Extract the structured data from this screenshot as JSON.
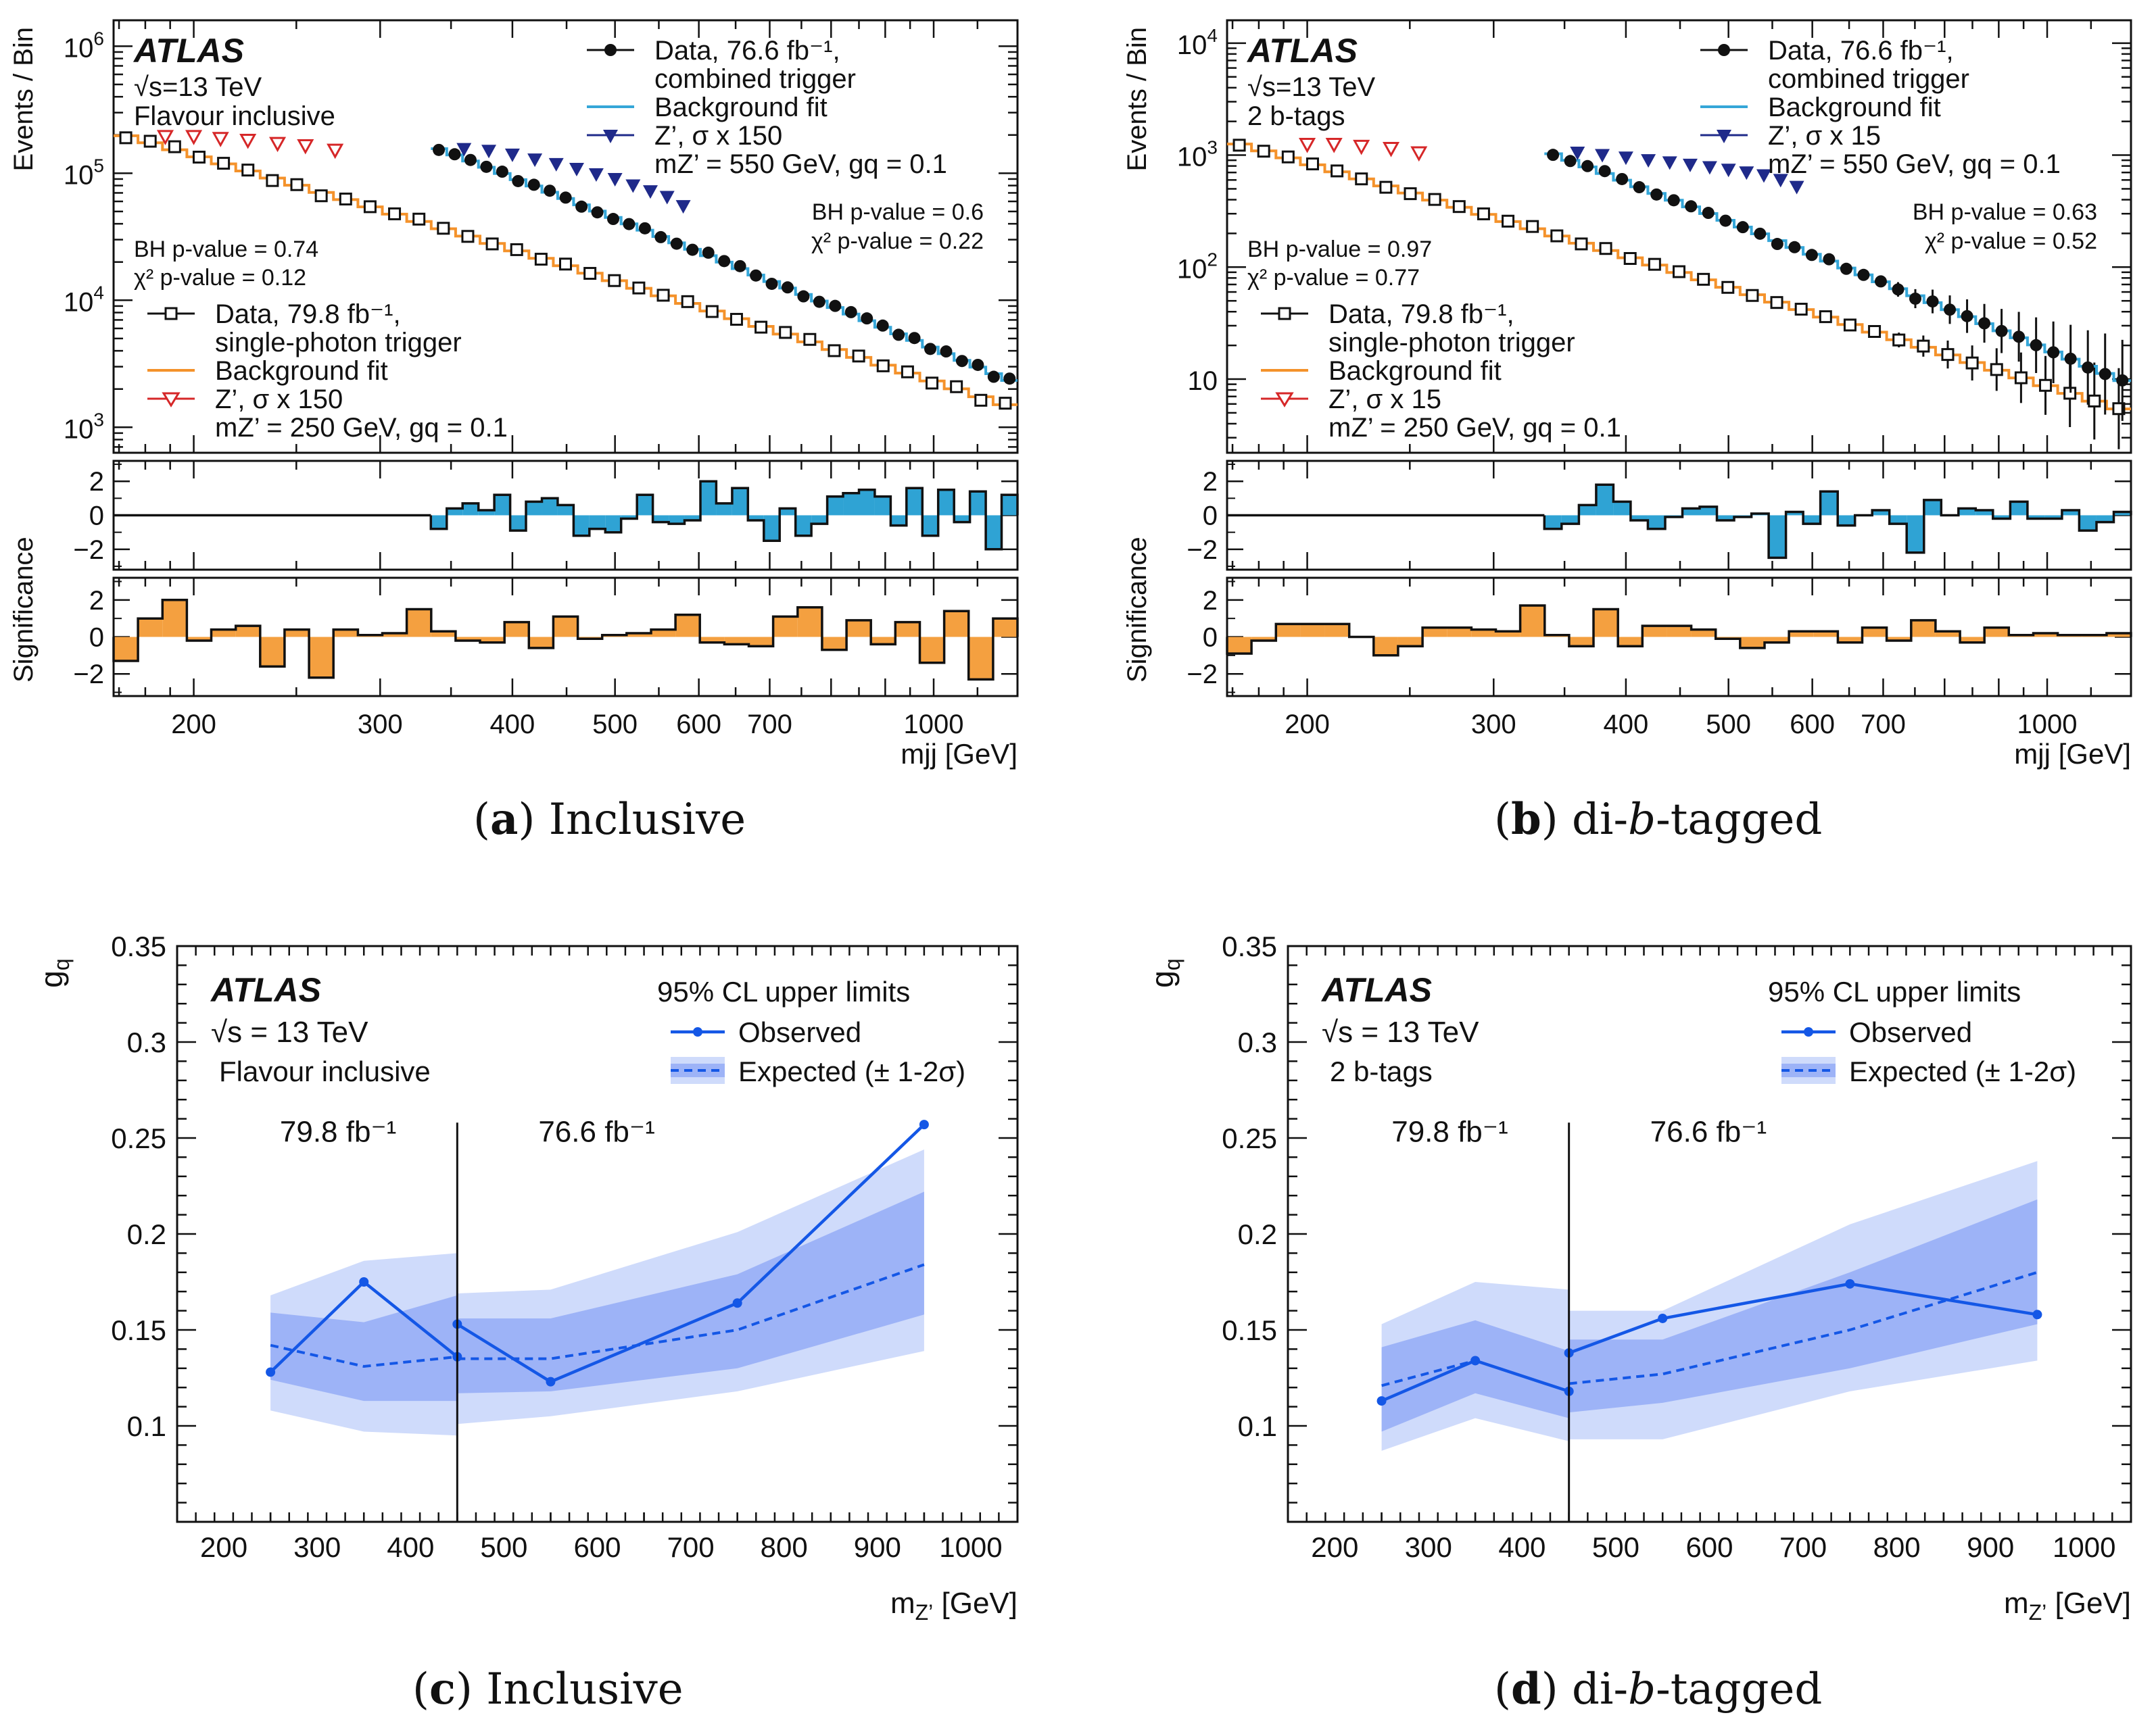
{
  "colors": {
    "orange_fit": "#f4922b",
    "orange_fill": "#f4a040",
    "blue_fit": "#35a6d8",
    "blue_fill": "#2fa3d4",
    "signal_red": "#d62728",
    "signal_navy": "#1f2a8a",
    "limit_blue": "#1457e6",
    "band_1sigma": "#9db3f7",
    "band_2sigma": "#cfdbfb"
  },
  "captions": {
    "a": {
      "label": "a",
      "text": "Inclusive"
    },
    "b": {
      "label": "b",
      "text_pre": "di-",
      "text_italic": "b",
      "text_post": "-tagged"
    },
    "c": {
      "label": "c",
      "text": "Inclusive"
    },
    "d": {
      "label": "d",
      "text_pre": "di-",
      "text_italic": "b",
      "text_post": "-tagged"
    }
  },
  "chart_data": [
    {
      "id": "a",
      "type": "line",
      "title": "Inclusive",
      "atlas_label": "ATLAS",
      "energy_label": "√s=13 TeV",
      "category_label": "Flavour inclusive",
      "xlabel": "m_jj [GeV]",
      "ylabel": "Events / Bin",
      "ylabel_significance": "Significance",
      "xscale": "log",
      "yscale": "log",
      "xlim": [
        168,
        1200
      ],
      "ylim": [
        630,
        1600000
      ],
      "x_ticks": [
        200,
        300,
        400,
        500,
        600,
        700,
        1000
      ],
      "y_tick_labels": [
        {
          "v": 1000,
          "mant": "10",
          "exp": "3"
        },
        {
          "v": 10000,
          "mant": "10",
          "exp": "4"
        },
        {
          "v": 100000,
          "mant": "10",
          "exp": "5"
        },
        {
          "v": 1000000,
          "mant": "10",
          "exp": "6"
        }
      ],
      "pvalues": {
        "single_photon": {
          "bh": "BH p-value = 0.74",
          "chi2": "χ² p-value = 0.12"
        },
        "combined": {
          "bh": "BH p-value = 0.6",
          "chi2": "χ² p-value = 0.22"
        }
      },
      "legend_combined": [
        "Data, 76.6 fb⁻¹,",
        "combined trigger",
        "Background fit",
        "Z’, σ x 150",
        "mZ’ = 550 GeV, gq = 0.1"
      ],
      "legend_single": [
        "Data, 79.8 fb⁻¹,",
        "single-photon trigger",
        "Background fit",
        "Z’, σ x 150",
        "mZ’ = 250 GeV, gq = 0.1"
      ],
      "single_photon": {
        "x_range": [
          168,
          1200
        ],
        "y_start": 210000,
        "y_end": 1400,
        "curve": 0.15,
        "signal_points": [
          [
            188,
            195000
          ],
          [
            200,
            195000
          ],
          [
            212,
            188000
          ],
          [
            225,
            182000
          ],
          [
            240,
            172000
          ],
          [
            255,
            165000
          ],
          [
            272,
            152000
          ]
        ],
        "significance": [
          -1.3,
          1.0,
          2.0,
          -0.2,
          0.4,
          0.6,
          -1.6,
          0.4,
          -2.2,
          0.4,
          0.1,
          0.2,
          1.5,
          0.3,
          -0.2,
          -0.3,
          0.8,
          -0.6,
          1.1,
          -0.1,
          0.1,
          0.2,
          0.4,
          1.2,
          -0.3,
          -0.4,
          -0.5,
          1.1,
          1.6,
          -0.7,
          0.9,
          -0.4,
          0.8,
          -1.4,
          1.4,
          -2.3,
          1.0
        ]
      },
      "combined": {
        "x_range": [
          335,
          1200
        ],
        "y_start": 165000,
        "y_end": 2200,
        "curve": 0.08,
        "signal_points": [
          [
            360,
            155000
          ],
          [
            380,
            150000
          ],
          [
            400,
            140000
          ],
          [
            420,
            128000
          ],
          [
            440,
            118000
          ],
          [
            460,
            108000
          ],
          [
            480,
            98000
          ],
          [
            500,
            90000
          ],
          [
            520,
            80000
          ],
          [
            540,
            72000
          ],
          [
            560,
            65000
          ],
          [
            580,
            55000
          ]
        ],
        "significance": [
          -0.8,
          0.4,
          0.7,
          0.3,
          1.2,
          -0.9,
          0.8,
          1.0,
          0.6,
          -1.2,
          -0.8,
          -1.0,
          -0.2,
          1.2,
          -0.4,
          -0.5,
          -0.3,
          2.0,
          0.7,
          1.6,
          -0.3,
          -1.5,
          0.4,
          -1.2,
          -0.5,
          1.1,
          1.3,
          1.5,
          1.1,
          -0.6,
          1.6,
          -1.2,
          1.5,
          -0.4,
          1.4,
          -2.0,
          1.2
        ]
      }
    },
    {
      "id": "b",
      "type": "line",
      "title": "di-b-tagged",
      "atlas_label": "ATLAS",
      "energy_label": "√s=13 TeV",
      "category_label": "2 b-tags",
      "xlabel": "m_jj [GeV]",
      "ylabel": "Events / Bin",
      "ylabel_significance": "Significance",
      "xscale": "log",
      "yscale": "log",
      "xlim": [
        168,
        1200
      ],
      "ylim": [
        2.2,
        16000
      ],
      "x_ticks": [
        200,
        300,
        400,
        500,
        600,
        700,
        1000
      ],
      "y_tick_labels": [
        {
          "v": 10,
          "mant": "10",
          "exp": ""
        },
        {
          "v": 100,
          "mant": "10",
          "exp": "2"
        },
        {
          "v": 1000,
          "mant": "10",
          "exp": "3"
        },
        {
          "v": 10000,
          "mant": "10",
          "exp": "4"
        }
      ],
      "pvalues": {
        "single_photon": {
          "bh": "BH p-value = 0.97",
          "chi2": "χ² p-value = 0.77"
        },
        "combined": {
          "bh": "BH p-value = 0.63",
          "chi2": "χ² p-value = 0.52"
        }
      },
      "legend_combined": [
        "Data, 76.6 fb⁻¹,",
        "combined trigger",
        "Background fit",
        "Z’, σ x 15",
        "mZ’ = 550 GeV, gq = 0.1"
      ],
      "legend_single": [
        "Data, 79.8 fb⁻¹,",
        "single-photon trigger",
        "Background fit",
        "Z’, σ x 15",
        "mZ’ = 250 GeV, gq = 0.1"
      ],
      "single_photon": {
        "x_range": [
          168,
          1200
        ],
        "y_start": 1350,
        "y_end": 5,
        "curve": 0.15,
        "signal_points": [
          [
            200,
            1250
          ],
          [
            212,
            1250
          ],
          [
            225,
            1200
          ],
          [
            240,
            1150
          ],
          [
            255,
            1050
          ]
        ],
        "significance": [
          -0.9,
          -0.2,
          0.7,
          0.7,
          0.7,
          0.0,
          -1.0,
          -0.5,
          0.5,
          0.5,
          0.4,
          0.3,
          1.7,
          0.1,
          -0.5,
          1.5,
          -0.5,
          0.6,
          0.6,
          0.4,
          -0.1,
          -0.6,
          -0.3,
          0.3,
          0.3,
          -0.3,
          0.5,
          -0.2,
          0.9,
          0.3,
          -0.3,
          0.5,
          0.1,
          0.2,
          0.1,
          0.1,
          0.2
        ]
      },
      "combined": {
        "x_range": [
          335,
          1200
        ],
        "y_start": 1100,
        "y_end": 9,
        "curve": 0.1,
        "signal_points": [
          [
            360,
            1050
          ],
          [
            380,
            1000
          ],
          [
            400,
            950
          ],
          [
            420,
            900
          ],
          [
            440,
            860
          ],
          [
            460,
            820
          ],
          [
            480,
            780
          ],
          [
            500,
            740
          ],
          [
            520,
            700
          ],
          [
            540,
            660
          ],
          [
            560,
            600
          ],
          [
            580,
            520
          ]
        ],
        "significance": [
          -0.8,
          -0.5,
          0.6,
          1.8,
          0.8,
          -0.3,
          -0.8,
          -0.1,
          0.4,
          0.5,
          -0.3,
          -0.1,
          0.1,
          -2.5,
          0.2,
          -0.5,
          1.4,
          -0.6,
          0.0,
          0.3,
          -0.5,
          -2.2,
          0.9,
          0.0,
          0.4,
          0.3,
          -0.2,
          0.8,
          -0.2,
          -0.2,
          0.3,
          -0.9,
          -0.4,
          0.2
        ]
      }
    },
    {
      "id": "c",
      "type": "line",
      "title": "Inclusive",
      "atlas_label": "ATLAS",
      "energy_label": "√s = 13 TeV",
      "category_label": "Flavour inclusive",
      "xlabel": "m_Z’ [GeV]",
      "ylabel": "g_q",
      "xlim": [
        150,
        1050
      ],
      "ylim": [
        0.05,
        0.35
      ],
      "x_ticks": [
        200,
        300,
        400,
        500,
        600,
        700,
        800,
        900,
        1000
      ],
      "y_ticks": [
        "0.1",
        "0.15",
        "0.2",
        "0.25",
        "0.3",
        "0.35"
      ],
      "legend_title": "95% CL upper limits",
      "legend_observed": "Observed",
      "legend_expected": "Expected (± 1-2σ)",
      "lumi_left": "79.8 fb⁻¹",
      "lumi_right": "76.6 fb⁻¹",
      "divider_x": 450,
      "segments": [
        {
          "x": [
            250,
            350,
            450
          ],
          "observed": [
            0.128,
            0.175,
            0.136
          ],
          "expected": [
            0.142,
            0.131,
            0.136
          ],
          "band1_lo": [
            0.124,
            0.113,
            0.113
          ],
          "band1_hi": [
            0.159,
            0.154,
            0.168
          ],
          "band2_lo": [
            0.108,
            0.097,
            0.095
          ],
          "band2_hi": [
            0.168,
            0.186,
            0.19
          ]
        },
        {
          "x": [
            450,
            550,
            750,
            950
          ],
          "observed": [
            0.153,
            0.123,
            0.164,
            0.257
          ],
          "expected": [
            0.135,
            0.135,
            0.15,
            0.184
          ],
          "band1_lo": [
            0.117,
            0.118,
            0.13,
            0.158
          ],
          "band1_hi": [
            0.156,
            0.156,
            0.179,
            0.222
          ],
          "band2_lo": [
            0.101,
            0.105,
            0.118,
            0.139
          ],
          "band2_hi": [
            0.169,
            0.171,
            0.201,
            0.244
          ]
        }
      ]
    },
    {
      "id": "d",
      "type": "line",
      "title": "di-b-tagged",
      "atlas_label": "ATLAS",
      "energy_label": "√s = 13 TeV",
      "category_label": "2 b-tags",
      "xlabel": "m_Z’ [GeV]",
      "ylabel": "g_q",
      "xlim": [
        150,
        1050
      ],
      "ylim": [
        0.05,
        0.35
      ],
      "x_ticks": [
        200,
        300,
        400,
        500,
        600,
        700,
        800,
        900,
        1000
      ],
      "y_ticks": [
        "0.1",
        "0.15",
        "0.2",
        "0.25",
        "0.3",
        "0.35"
      ],
      "legend_title": "95% CL upper limits",
      "legend_observed": "Observed",
      "legend_expected": "Expected (± 1-2σ)",
      "lumi_left": "79.8 fb⁻¹",
      "lumi_right": "76.6 fb⁻¹",
      "divider_x": 450,
      "segments": [
        {
          "x": [
            250,
            350,
            450
          ],
          "observed": [
            0.113,
            0.134,
            0.118
          ],
          "expected": [
            0.121,
            0.134,
            0.118
          ],
          "band1_lo": [
            0.097,
            0.117,
            0.104
          ],
          "band1_hi": [
            0.141,
            0.155,
            0.139
          ],
          "band2_lo": [
            0.087,
            0.104,
            0.092
          ],
          "band2_hi": [
            0.153,
            0.175,
            0.171
          ]
        },
        {
          "x": [
            450,
            550,
            750,
            950
          ],
          "observed": [
            0.138,
            0.156,
            0.174,
            0.158
          ],
          "expected": [
            0.122,
            0.127,
            0.15,
            0.18
          ],
          "band1_lo": [
            0.107,
            0.112,
            0.13,
            0.153
          ],
          "band1_hi": [
            0.145,
            0.145,
            0.18,
            0.218
          ],
          "band2_lo": [
            0.093,
            0.093,
            0.118,
            0.134
          ],
          "band2_hi": [
            0.16,
            0.16,
            0.205,
            0.238
          ]
        }
      ]
    }
  ]
}
